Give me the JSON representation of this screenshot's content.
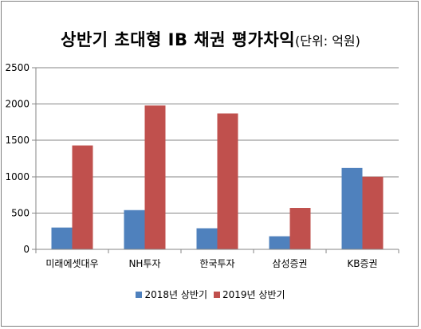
{
  "chart_data": {
    "type": "bar",
    "title": "상반기 초대형 IB 채권 평가차익",
    "subtitle": "(단위: 억원)",
    "xlabel": "",
    "ylabel": "",
    "categories": [
      "미래에셋대우",
      "NH투자",
      "한국투자",
      "삼성증권",
      "KB증권"
    ],
    "series": [
      {
        "name": "2018년 상반기",
        "color": "#4f81bd",
        "values": [
          300,
          540,
          290,
          180,
          1120
        ]
      },
      {
        "name": "2019년 상반기",
        "color": "#c0504d",
        "values": [
          1430,
          1980,
          1870,
          570,
          1000
        ]
      }
    ],
    "ylim": [
      0,
      2500
    ],
    "yticks": [
      0,
      500,
      1000,
      1500,
      2000,
      2500
    ],
    "grid": true,
    "legend_position": "bottom"
  }
}
